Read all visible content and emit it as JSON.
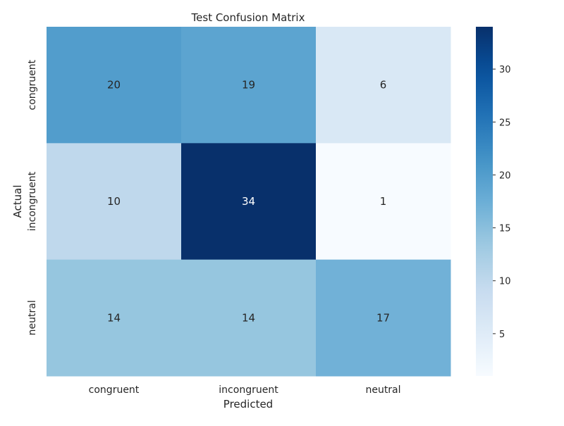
{
  "chart_data": {
    "type": "heatmap",
    "title": "Test Confusion Matrix",
    "xlabel": "Predicted",
    "ylabel": "Actual",
    "x_categories": [
      "congruent",
      "incongruent",
      "neutral"
    ],
    "y_categories": [
      "congruent",
      "incongruent",
      "neutral"
    ],
    "values": [
      [
        20,
        19,
        6
      ],
      [
        10,
        34,
        1
      ],
      [
        14,
        14,
        17
      ]
    ],
    "colormap": "Blues",
    "colorbar": {
      "min": 1,
      "max": 34,
      "ticks": [
        5,
        10,
        15,
        20,
        25,
        30
      ]
    },
    "grid": false,
    "annotations": true
  }
}
